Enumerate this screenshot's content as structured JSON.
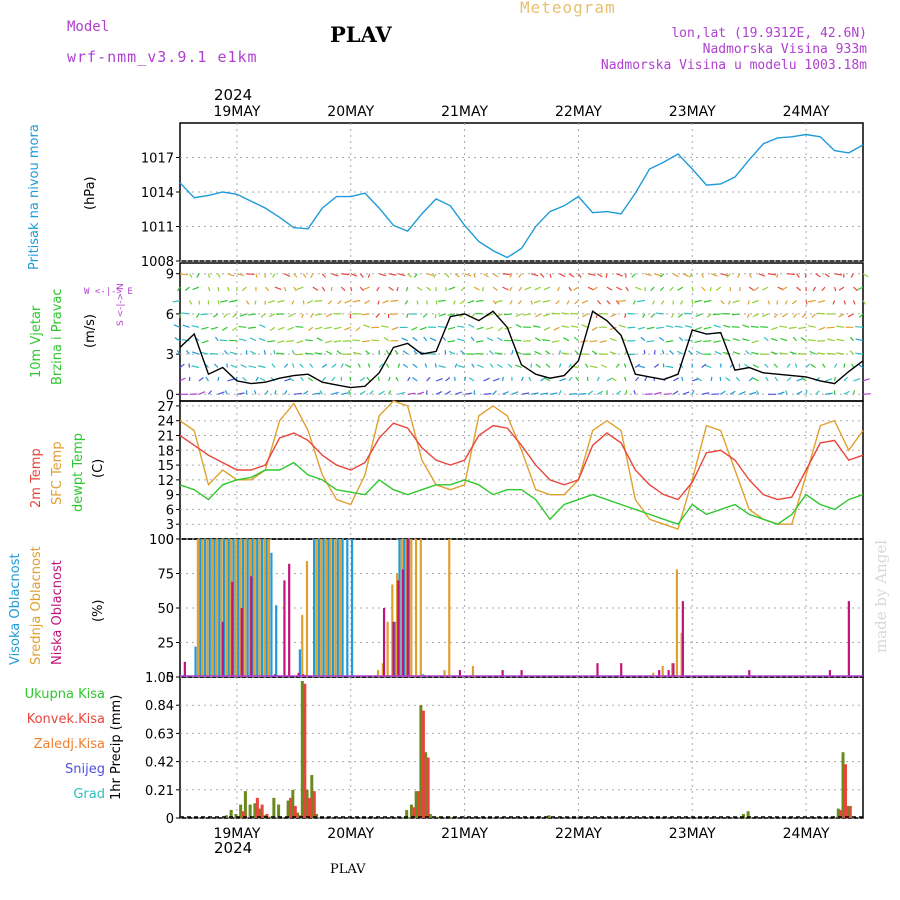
{
  "header": {
    "model_label": "Model",
    "model_name": "wrf-nmm_v3.9.1  e1km",
    "station": "PLAV",
    "product": "Meteogram",
    "lonlat": "lon,lat (19.9312E, 42.6N)",
    "elevation": "Nadmorska Visina 933m",
    "model_elevation": "Nadmorska Visina u modelu 1003.18m",
    "watermark": "made by Angel",
    "footer_station": "PLAV",
    "year": "2024"
  },
  "colors": {
    "pressure": "#1e9bd8",
    "temp2m": "#e8463c",
    "sfc": "#e0a030",
    "dewpt": "#2ec82e",
    "high_cloud": "#1e9bd8",
    "mid_cloud": "#e0a030",
    "low_cloud": "#c0147c",
    "total_precip": "#2ec82e",
    "conv_precip": "#e8463c",
    "frozen_precip": "#f08030",
    "snow": "#5050e0",
    "grad": "#30c0c0",
    "wind_line": "#000000",
    "wind_direction_label": "#b040d0"
  },
  "x_axis": {
    "days": [
      "19MAY",
      "20MAY",
      "21MAY",
      "22MAY",
      "23MAY",
      "24MAY"
    ],
    "start": "2024-05-18T12:00",
    "end": "2024-05-24T12:00"
  },
  "chart_data": [
    {
      "type": "line",
      "name": "pressure",
      "ylabel_1": "Pritisak na nivou mora",
      "ylabel_2": "(hPa)",
      "ylim": [
        1008,
        1020
      ],
      "yticks": [
        "1008",
        "1011",
        "1014",
        "1017"
      ],
      "series": [
        {
          "x": [
            0,
            3,
            6,
            9,
            12,
            15,
            18,
            21,
            24,
            27,
            30,
            33,
            36,
            39,
            42,
            45,
            48,
            51,
            54,
            57,
            60,
            63,
            66,
            69,
            72,
            75,
            78,
            81,
            84,
            87,
            90,
            93,
            96,
            99,
            102,
            105,
            108,
            111,
            114,
            117,
            120,
            123,
            126,
            129,
            132,
            135,
            138,
            141,
            144
          ],
          "values": [
            1014.8,
            1013.5,
            1013.7,
            1014.0,
            1013.8,
            1013.2,
            1012.6,
            1011.8,
            1010.9,
            1010.8,
            1012.6,
            1013.6,
            1013.6,
            1013.9,
            1012.6,
            1011.1,
            1010.6,
            1012.1,
            1013.4,
            1012.8,
            1011.1,
            1009.7,
            1008.9,
            1008.3,
            1009.1,
            1011.0,
            1012.3,
            1012.8,
            1013.6,
            1012.2,
            1012.3,
            1012.1,
            1013.9,
            1016.0,
            1016.6,
            1017.3,
            1016.0,
            1014.6,
            1014.7,
            1015.3,
            1016.8,
            1018.2,
            1018.7,
            1018.8,
            1019.0,
            1018.8,
            1017.6,
            1017.4,
            1018.1
          ]
        }
      ]
    },
    {
      "type": "line",
      "name": "wind",
      "ylabel_1": "10m Vjetar",
      "ylabel_2": "Brzina i Pravac",
      "ylabel_3": "(m/s)",
      "direction_label": "W <-|-> E",
      "direction_label_2": "S <-|-> N",
      "ylim": [
        -0.5,
        9.8
      ],
      "yticks": [
        "0",
        "3",
        "6",
        "9"
      ],
      "series": [
        {
          "x": [
            0,
            3,
            6,
            9,
            12,
            15,
            18,
            21,
            24,
            27,
            30,
            33,
            36,
            39,
            42,
            45,
            48,
            51,
            54,
            57,
            60,
            63,
            66,
            69,
            72,
            75,
            78,
            81,
            84,
            87,
            90,
            93,
            96,
            99,
            102,
            105,
            108,
            111,
            114,
            117,
            120,
            123,
            126,
            129,
            132,
            135,
            138,
            141,
            144
          ],
          "values": [
            3.5,
            4.5,
            1.5,
            2.0,
            1.0,
            0.8,
            0.9,
            1.2,
            1.4,
            1.5,
            0.9,
            0.7,
            0.5,
            0.6,
            1.6,
            3.5,
            3.8,
            3.0,
            3.2,
            5.8,
            6.0,
            5.5,
            6.2,
            5.0,
            2.2,
            1.5,
            1.2,
            1.4,
            2.5,
            6.2,
            5.5,
            4.4,
            1.5,
            1.3,
            1.1,
            1.5,
            4.8,
            4.5,
            4.6,
            1.8,
            2.0,
            1.6,
            1.5,
            1.4,
            1.3,
            1.0,
            0.8,
            1.7,
            2.5
          ]
        }
      ]
    },
    {
      "type": "line",
      "name": "temperature",
      "ylabel_1": "2m Temp",
      "ylabel_2": "SFC Temp",
      "ylabel_3": "dewpt Temp",
      "ylabel_4": "(C)",
      "ylim": [
        0,
        28
      ],
      "yticks": [
        "0",
        "3",
        "6",
        "9",
        "12",
        "15",
        "18",
        "21",
        "24",
        "27"
      ],
      "series": [
        {
          "name": "2m Temp",
          "x": [
            0,
            3,
            6,
            9,
            12,
            15,
            18,
            21,
            24,
            27,
            30,
            33,
            36,
            39,
            42,
            45,
            48,
            51,
            54,
            57,
            60,
            63,
            66,
            69,
            72,
            75,
            78,
            81,
            84,
            87,
            90,
            93,
            96,
            99,
            102,
            105,
            108,
            111,
            114,
            117,
            120,
            123,
            126,
            129,
            132,
            135,
            138,
            141,
            144
          ],
          "values": [
            21,
            19,
            17,
            15.5,
            14,
            14,
            15,
            20.5,
            21.5,
            20,
            17,
            15,
            14,
            15.5,
            20.5,
            23.5,
            22.5,
            18.5,
            16,
            15,
            16,
            21,
            23,
            22.5,
            19,
            15,
            12,
            11,
            12,
            19,
            21.5,
            19.5,
            14,
            11,
            9,
            8,
            11.5,
            17.5,
            18,
            16,
            12,
            9,
            8,
            8.5,
            14,
            19.5,
            20,
            16,
            17
          ]
        },
        {
          "name": "SFC Temp",
          "x": [
            0,
            3,
            6,
            9,
            12,
            15,
            18,
            21,
            24,
            27,
            30,
            33,
            36,
            39,
            42,
            45,
            48,
            51,
            54,
            57,
            60,
            63,
            66,
            69,
            72,
            75,
            78,
            81,
            84,
            87,
            90,
            93,
            96,
            99,
            102,
            105,
            108,
            111,
            114,
            117,
            120,
            123,
            126,
            129,
            132,
            135,
            138,
            141,
            144
          ],
          "values": [
            24,
            22,
            11,
            14,
            12,
            12,
            14,
            24,
            27.5,
            22,
            13,
            8,
            7,
            13,
            25,
            28,
            27,
            16,
            11,
            10,
            11,
            25,
            27,
            25,
            18,
            10,
            9,
            9,
            12,
            22,
            24,
            22,
            8,
            4,
            3,
            2,
            12,
            23,
            22,
            14,
            6,
            4,
            3,
            3,
            13,
            23,
            24,
            18,
            22
          ]
        },
        {
          "name": "dewpt Temp",
          "x": [
            0,
            3,
            6,
            9,
            12,
            15,
            18,
            21,
            24,
            27,
            30,
            33,
            36,
            39,
            42,
            45,
            48,
            51,
            54,
            57,
            60,
            63,
            66,
            69,
            72,
            75,
            78,
            81,
            84,
            87,
            90,
            93,
            96,
            99,
            102,
            105,
            108,
            111,
            114,
            117,
            120,
            123,
            126,
            129,
            132,
            135,
            138,
            141,
            144
          ],
          "values": [
            11,
            10,
            8,
            11,
            12,
            12.5,
            14,
            14,
            15.5,
            13,
            12,
            10,
            9.5,
            9,
            12,
            10,
            9,
            10,
            11,
            11,
            12,
            11,
            9,
            10,
            10,
            8,
            4,
            7,
            8,
            9,
            8,
            7,
            6,
            5,
            4,
            3,
            7,
            5,
            6,
            7,
            5,
            4,
            3,
            5,
            9,
            7,
            6,
            8,
            9
          ]
        }
      ]
    },
    {
      "type": "bar",
      "name": "cloud_cover",
      "ylabel_1": "Visoka Oblacnost",
      "ylabel_2": "Srednja Oblacnost",
      "ylabel_3": "Niska Oblacnost",
      "ylabel_4": "(%)",
      "ylim": [
        0,
        100
      ],
      "yticks": [
        "0",
        "25",
        "50",
        "75",
        "100"
      ],
      "series": [
        {
          "name": "high",
          "x": [
            3,
            4,
            5,
            6,
            7,
            8,
            9,
            10,
            11,
            12,
            13,
            14,
            15,
            16,
            17,
            18,
            19,
            20,
            21,
            22,
            24,
            25,
            28,
            29,
            30,
            31,
            32,
            33,
            34,
            35,
            36,
            40,
            41,
            42,
            43,
            44,
            45,
            46,
            47,
            48,
            51,
            57,
            62,
            65
          ],
          "values": [
            22,
            100,
            100,
            100,
            100,
            100,
            100,
            100,
            100,
            100,
            100,
            100,
            100,
            100,
            100,
            100,
            90,
            52,
            0,
            0,
            0,
            20,
            100,
            100,
            100,
            100,
            100,
            100,
            100,
            100,
            100,
            0,
            0,
            0,
            0,
            0,
            40,
            100,
            100,
            100,
            2,
            0,
            0,
            0
          ]
        },
        {
          "name": "mid",
          "x": [
            4,
            5,
            6,
            7,
            8,
            9,
            10,
            11,
            12,
            13,
            14,
            15,
            16,
            17,
            18,
            19,
            26,
            27,
            29,
            30,
            31,
            32,
            33,
            34,
            42,
            43,
            44,
            45,
            46,
            47,
            48,
            49,
            50,
            51,
            56,
            57,
            62,
            100,
            102,
            104,
            105,
            106
          ],
          "values": [
            100,
            100,
            100,
            100,
            100,
            100,
            100,
            100,
            100,
            100,
            100,
            100,
            100,
            100,
            100,
            100,
            45,
            84,
            100,
            100,
            100,
            100,
            100,
            100,
            5,
            10,
            40,
            67,
            75,
            100,
            100,
            100,
            100,
            100,
            5,
            100,
            8,
            3,
            8,
            10,
            78,
            32
          ]
        },
        {
          "name": "low",
          "x": [
            1,
            9,
            11,
            13,
            15,
            20,
            22,
            23,
            25,
            26,
            43,
            44,
            45,
            46,
            47,
            48,
            59,
            68,
            72,
            88,
            93,
            101,
            103,
            104,
            106,
            120,
            137,
            141
          ],
          "values": [
            11,
            40,
            69,
            50,
            73,
            2,
            70,
            82,
            3,
            2,
            50,
            0,
            40,
            70,
            78,
            100,
            5,
            5,
            5,
            10,
            10,
            5,
            5,
            10,
            55,
            5,
            5,
            55
          ]
        }
      ]
    },
    {
      "type": "bar",
      "name": "precipitation",
      "ylabel_1": "1hr Precip (mm)",
      "ylim": [
        0,
        1.05
      ],
      "yticks": [
        "0",
        "0.21",
        "0.42",
        "0.63",
        "0.84",
        "1.05"
      ],
      "legend": [
        "Ukupna Kisa",
        "Konvek.Kisa",
        "Zaledj.Kisa",
        "Snijeg",
        "Grad"
      ],
      "series": [
        {
          "name": "Ukupna Kisa",
          "x": [
            10,
            11,
            12,
            13,
            14,
            15,
            16,
            17,
            18,
            19,
            20,
            21,
            23,
            24,
            25,
            26,
            27,
            28,
            29,
            48,
            49,
            50,
            51,
            52,
            53,
            54,
            55,
            57,
            78,
            92,
            119,
            120,
            139,
            140,
            141
          ],
          "values": [
            0.02,
            0.06,
            0.03,
            0.1,
            0.2,
            0.1,
            0.11,
            0.07,
            0.02,
            0.01,
            0.15,
            0.1,
            0.13,
            0.21,
            0.04,
            1.02,
            0.21,
            0.32,
            0.03,
            0.06,
            0.1,
            0.2,
            0.84,
            0.49,
            0.03,
            0.01,
            0.01,
            0.01,
            0.02,
            0.01,
            0.03,
            0.05,
            0.07,
            0.49,
            0.09
          ]
        },
        {
          "name": "Konvek.Kisa",
          "x": [
            13,
            16,
            17,
            18,
            23,
            24,
            25,
            26,
            27,
            28,
            49,
            50,
            51,
            52,
            139,
            140,
            141
          ],
          "values": [
            0.05,
            0.15,
            0.1,
            0.03,
            0.15,
            0.09,
            0.02,
            1.0,
            0.15,
            0.2,
            0.08,
            0.2,
            0.8,
            0.45,
            0.06,
            0.4,
            0.09
          ]
        }
      ]
    }
  ]
}
